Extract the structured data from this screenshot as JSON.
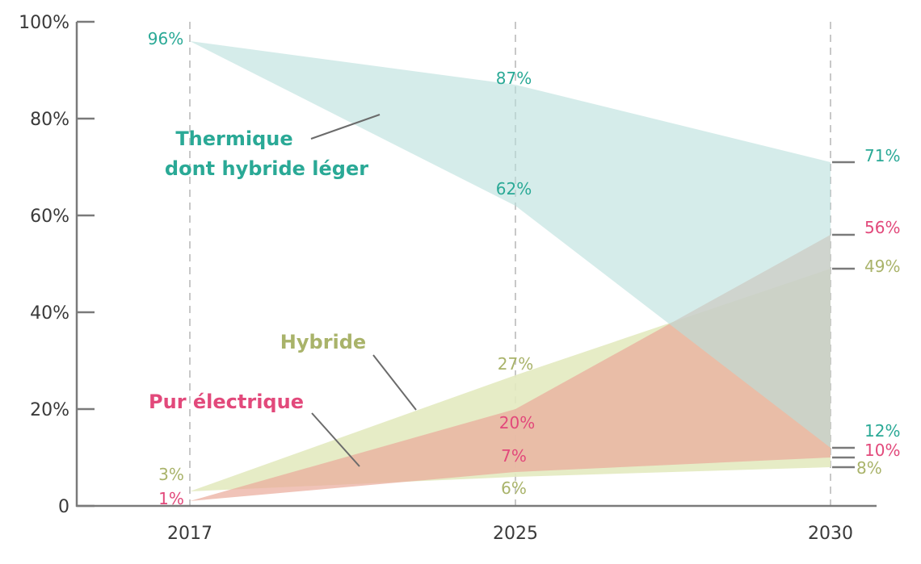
{
  "chart_data": {
    "type": "area",
    "x": [
      "2017",
      "2025",
      "2030"
    ],
    "ylim": [
      0,
      100
    ],
    "yticks": [
      "0",
      "20%",
      "40%",
      "60%",
      "80%",
      "100%"
    ],
    "grid": "dashed vertical lines at each year",
    "series": [
      {
        "key": "hybride",
        "name": "Hybride",
        "color": "#a9b36a",
        "fill": "#e3eac0",
        "low": [
          3,
          6,
          8
        ],
        "high": [
          3,
          27,
          49
        ],
        "labels": {
          "low": [
            "3%",
            "6%",
            "8%"
          ],
          "high": [
            "",
            "27%",
            "49%"
          ]
        }
      },
      {
        "key": "electrique",
        "name": "Pur électrique",
        "color": "#e2497b",
        "fill": "#e9a99a",
        "low": [
          1,
          7,
          10
        ],
        "high": [
          1,
          20,
          56
        ],
        "labels": {
          "low": [
            "1%",
            "7%",
            "10%"
          ],
          "high": [
            "",
            "20%",
            "56%"
          ]
        }
      },
      {
        "key": "thermique",
        "name_lines": [
          "Thermique",
          "dont hybride léger"
        ],
        "color": "#2aa996",
        "fill": "#b9e0dc",
        "low": [
          96,
          62,
          12
        ],
        "high": [
          96,
          87,
          71
        ],
        "labels": {
          "low": [
            "",
            "62%",
            "12%"
          ],
          "high": [
            "96%",
            "87%",
            "71%"
          ]
        }
      }
    ]
  }
}
